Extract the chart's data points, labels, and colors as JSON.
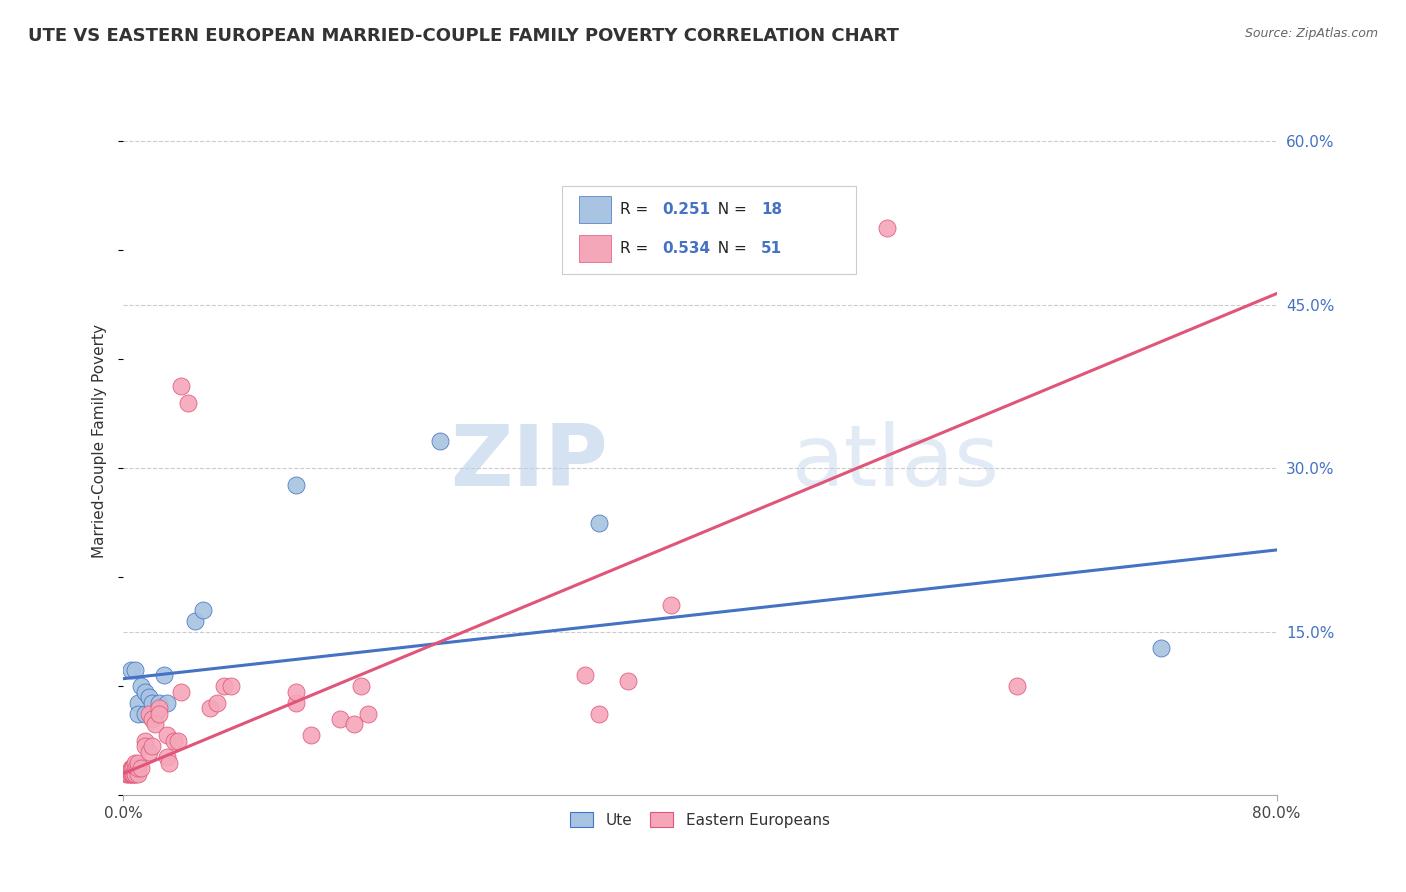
{
  "title": "UTE VS EASTERN EUROPEAN MARRIED-COUPLE FAMILY POVERTY CORRELATION CHART",
  "source": "Source: ZipAtlas.com",
  "ylabel": "Married-Couple Family Poverty",
  "xlim": [
    0.0,
    0.8
  ],
  "ylim": [
    0.0,
    0.65
  ],
  "ytick_positions": [
    0.15,
    0.3,
    0.45,
    0.6
  ],
  "ytick_labels": [
    "15.0%",
    "30.0%",
    "45.0%",
    "60.0%"
  ],
  "watermark_zip": "ZIP",
  "watermark_atlas": "atlas",
  "ute_color": "#a8c4e0",
  "eastern_color": "#f4a7b9",
  "ute_line_color": "#4472c4",
  "eastern_line_color": "#e05578",
  "ute_scatter": [
    [
      0.005,
      0.115
    ],
    [
      0.008,
      0.115
    ],
    [
      0.01,
      0.085
    ],
    [
      0.01,
      0.075
    ],
    [
      0.012,
      0.1
    ],
    [
      0.015,
      0.095
    ],
    [
      0.015,
      0.075
    ],
    [
      0.018,
      0.09
    ],
    [
      0.02,
      0.085
    ],
    [
      0.022,
      0.075
    ],
    [
      0.025,
      0.085
    ],
    [
      0.028,
      0.11
    ],
    [
      0.03,
      0.085
    ],
    [
      0.05,
      0.16
    ],
    [
      0.055,
      0.17
    ],
    [
      0.12,
      0.285
    ],
    [
      0.22,
      0.325
    ],
    [
      0.33,
      0.25
    ],
    [
      0.72,
      0.135
    ]
  ],
  "eastern_scatter": [
    [
      0.002,
      0.02
    ],
    [
      0.003,
      0.02
    ],
    [
      0.004,
      0.02
    ],
    [
      0.005,
      0.02
    ],
    [
      0.005,
      0.025
    ],
    [
      0.006,
      0.02
    ],
    [
      0.006,
      0.025
    ],
    [
      0.007,
      0.025
    ],
    [
      0.007,
      0.02
    ],
    [
      0.008,
      0.02
    ],
    [
      0.008,
      0.03
    ],
    [
      0.008,
      0.02
    ],
    [
      0.009,
      0.025
    ],
    [
      0.01,
      0.02
    ],
    [
      0.01,
      0.025
    ],
    [
      0.01,
      0.03
    ],
    [
      0.012,
      0.025
    ],
    [
      0.015,
      0.05
    ],
    [
      0.015,
      0.045
    ],
    [
      0.018,
      0.04
    ],
    [
      0.018,
      0.075
    ],
    [
      0.02,
      0.045
    ],
    [
      0.02,
      0.07
    ],
    [
      0.022,
      0.065
    ],
    [
      0.025,
      0.08
    ],
    [
      0.025,
      0.075
    ],
    [
      0.03,
      0.035
    ],
    [
      0.03,
      0.055
    ],
    [
      0.032,
      0.03
    ],
    [
      0.035,
      0.05
    ],
    [
      0.038,
      0.05
    ],
    [
      0.04,
      0.095
    ],
    [
      0.04,
      0.375
    ],
    [
      0.045,
      0.36
    ],
    [
      0.06,
      0.08
    ],
    [
      0.065,
      0.085
    ],
    [
      0.07,
      0.1
    ],
    [
      0.075,
      0.1
    ],
    [
      0.12,
      0.085
    ],
    [
      0.12,
      0.095
    ],
    [
      0.13,
      0.055
    ],
    [
      0.15,
      0.07
    ],
    [
      0.16,
      0.065
    ],
    [
      0.165,
      0.1
    ],
    [
      0.17,
      0.075
    ],
    [
      0.32,
      0.11
    ],
    [
      0.33,
      0.075
    ],
    [
      0.35,
      0.105
    ],
    [
      0.38,
      0.175
    ],
    [
      0.53,
      0.52
    ],
    [
      0.62,
      0.1
    ]
  ],
  "ute_trendline": [
    [
      0.0,
      0.107
    ],
    [
      0.8,
      0.225
    ]
  ],
  "eastern_trendline": [
    [
      0.0,
      0.02
    ],
    [
      0.8,
      0.46
    ]
  ]
}
